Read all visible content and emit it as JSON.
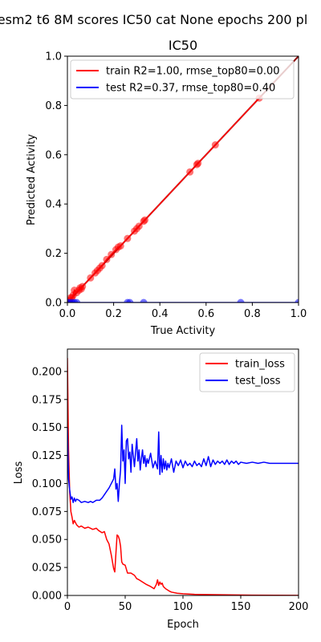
{
  "suptitle": "esm2 t6 8M scores IC50 cat None epochs 200 pl",
  "colors": {
    "train": "#ff0000",
    "test": "#0000ff",
    "diag": "#8b0000",
    "axis": "#000000"
  },
  "chart_data": [
    {
      "type": "scatter",
      "title": "IC50",
      "xlabel": "True Activity",
      "ylabel": "Predicted Activity",
      "xlim": [
        0,
        1
      ],
      "ylim": [
        0,
        1
      ],
      "xticks": [
        "0.0",
        "0.2",
        "0.4",
        "0.6",
        "0.8",
        "1.0"
      ],
      "yticks": [
        "0.0",
        "0.2",
        "0.4",
        "0.6",
        "0.8",
        "1.0"
      ],
      "legend_position": "upper-left",
      "diagonal": true,
      "series": [
        {
          "name": "train R2=1.00, rmse_top80=0.00",
          "color": "#ff0000",
          "points": [
            [
              0.0,
              0.0
            ],
            [
              0.005,
              0.005
            ],
            [
              0.01,
              0.01
            ],
            [
              0.015,
              0.02
            ],
            [
              0.02,
              0.02
            ],
            [
              0.025,
              0.03
            ],
            [
              0.03,
              0.05
            ],
            [
              0.04,
              0.04
            ],
            [
              0.05,
              0.05
            ],
            [
              0.055,
              0.06
            ],
            [
              0.06,
              0.055
            ],
            [
              0.065,
              0.065
            ],
            [
              0.1,
              0.1
            ],
            [
              0.12,
              0.12
            ],
            [
              0.13,
              0.13
            ],
            [
              0.14,
              0.14
            ],
            [
              0.15,
              0.15
            ],
            [
              0.17,
              0.175
            ],
            [
              0.19,
              0.195
            ],
            [
              0.21,
              0.215
            ],
            [
              0.22,
              0.225
            ],
            [
              0.23,
              0.23
            ],
            [
              0.26,
              0.26
            ],
            [
              0.29,
              0.29
            ],
            [
              0.3,
              0.3
            ],
            [
              0.31,
              0.31
            ],
            [
              0.33,
              0.33
            ],
            [
              0.335,
              0.335
            ],
            [
              0.53,
              0.53
            ],
            [
              0.56,
              0.56
            ],
            [
              0.565,
              0.565
            ],
            [
              0.64,
              0.64
            ],
            [
              0.83,
              0.83
            ]
          ]
        },
        {
          "name": "test R2=0.37, rmse_top80=0.40",
          "color": "#0000ff",
          "points": [
            [
              0.0,
              0.0
            ],
            [
              0.01,
              0.0
            ],
            [
              0.02,
              0.0
            ],
            [
              0.03,
              0.0
            ],
            [
              0.04,
              0.0
            ],
            [
              0.26,
              0.0
            ],
            [
              0.27,
              0.0
            ],
            [
              0.33,
              0.0
            ],
            [
              0.75,
              0.0
            ],
            [
              1.0,
              0.0
            ]
          ]
        }
      ]
    },
    {
      "type": "line",
      "title": "",
      "xlabel": "Epoch",
      "ylabel": "Loss",
      "xlim": [
        0,
        200
      ],
      "ylim": [
        0,
        0.22
      ],
      "xticks": [
        "0",
        "50",
        "100",
        "150",
        "200"
      ],
      "yticks": [
        "0.000",
        "0.025",
        "0.050",
        "0.075",
        "0.100",
        "0.125",
        "0.150",
        "0.175",
        "0.200"
      ],
      "legend_position": "upper-right",
      "series": [
        {
          "name": "train_loss",
          "color": "#ff0000",
          "points": [
            [
              0,
              0.212
            ],
            [
              1,
              0.13
            ],
            [
              2,
              0.092
            ],
            [
              3,
              0.075
            ],
            [
              4,
              0.07
            ],
            [
              5,
              0.064
            ],
            [
              6,
              0.067
            ],
            [
              8,
              0.063
            ],
            [
              10,
              0.061
            ],
            [
              12,
              0.062
            ],
            [
              15,
              0.06
            ],
            [
              18,
              0.061
            ],
            [
              20,
              0.06
            ],
            [
              22,
              0.059
            ],
            [
              25,
              0.06
            ],
            [
              27,
              0.058
            ],
            [
              30,
              0.056
            ],
            [
              32,
              0.057
            ],
            [
              34,
              0.05
            ],
            [
              36,
              0.046
            ],
            [
              38,
              0.036
            ],
            [
              40,
              0.024
            ],
            [
              41,
              0.021
            ],
            [
              42,
              0.038
            ],
            [
              43,
              0.054
            ],
            [
              44,
              0.053
            ],
            [
              45,
              0.05
            ],
            [
              46,
              0.044
            ],
            [
              47,
              0.03
            ],
            [
              48,
              0.028
            ],
            [
              50,
              0.027
            ],
            [
              52,
              0.02
            ],
            [
              55,
              0.02
            ],
            [
              58,
              0.018
            ],
            [
              60,
              0.015
            ],
            [
              62,
              0.014
            ],
            [
              65,
              0.012
            ],
            [
              68,
              0.01
            ],
            [
              70,
              0.009
            ],
            [
              72,
              0.008
            ],
            [
              75,
              0.006
            ],
            [
              77,
              0.01
            ],
            [
              78,
              0.014
            ],
            [
              79,
              0.009
            ],
            [
              80,
              0.012
            ],
            [
              81,
              0.01
            ],
            [
              82,
              0.011
            ],
            [
              83,
              0.008
            ],
            [
              85,
              0.006
            ],
            [
              88,
              0.004
            ],
            [
              90,
              0.003
            ],
            [
              95,
              0.002
            ],
            [
              100,
              0.0015
            ],
            [
              110,
              0.001
            ],
            [
              120,
              0.0008
            ],
            [
              140,
              0.0005
            ],
            [
              160,
              0.0003
            ],
            [
              180,
              0.0002
            ],
            [
              200,
              0.0001
            ]
          ]
        },
        {
          "name": "test_loss",
          "color": "#0000ff",
          "points": [
            [
              0,
              0.15
            ],
            [
              1,
              0.104
            ],
            [
              2,
              0.094
            ],
            [
              3,
              0.086
            ],
            [
              4,
              0.088
            ],
            [
              5,
              0.083
            ],
            [
              6,
              0.087
            ],
            [
              7,
              0.084
            ],
            [
              8,
              0.086
            ],
            [
              10,
              0.085
            ],
            [
              12,
              0.083
            ],
            [
              15,
              0.084
            ],
            [
              18,
              0.083
            ],
            [
              20,
              0.084
            ],
            [
              22,
              0.083
            ],
            [
              25,
              0.085
            ],
            [
              28,
              0.085
            ],
            [
              30,
              0.087
            ],
            [
              32,
              0.09
            ],
            [
              34,
              0.093
            ],
            [
              36,
              0.096
            ],
            [
              38,
              0.1
            ],
            [
              40,
              0.104
            ],
            [
              41,
              0.113
            ],
            [
              42,
              0.095
            ],
            [
              43,
              0.1
            ],
            [
              44,
              0.084
            ],
            [
              45,
              0.1
            ],
            [
              46,
              0.112
            ],
            [
              47,
              0.152
            ],
            [
              48,
              0.12
            ],
            [
              49,
              0.13
            ],
            [
              50,
              0.1
            ],
            [
              51,
              0.138
            ],
            [
              52,
              0.14
            ],
            [
              53,
              0.122
            ],
            [
              54,
              0.128
            ],
            [
              55,
              0.11
            ],
            [
              56,
              0.135
            ],
            [
              57,
              0.125
            ],
            [
              58,
              0.115
            ],
            [
              59,
              0.128
            ],
            [
              60,
              0.14
            ],
            [
              61,
              0.12
            ],
            [
              62,
              0.13
            ],
            [
              63,
              0.112
            ],
            [
              64,
              0.122
            ],
            [
              65,
              0.13
            ],
            [
              66,
              0.118
            ],
            [
              67,
              0.125
            ],
            [
              68,
              0.115
            ],
            [
              69,
              0.122
            ],
            [
              70,
              0.118
            ],
            [
              72,
              0.127
            ],
            [
              74,
              0.114
            ],
            [
              76,
              0.12
            ],
            [
              78,
              0.113
            ],
            [
              79,
              0.146
            ],
            [
              80,
              0.108
            ],
            [
              81,
              0.125
            ],
            [
              82,
              0.11
            ],
            [
              83,
              0.122
            ],
            [
              84,
              0.113
            ],
            [
              85,
              0.12
            ],
            [
              86,
              0.112
            ],
            [
              87,
              0.118
            ],
            [
              88,
              0.114
            ],
            [
              90,
              0.122
            ],
            [
              92,
              0.11
            ],
            [
              94,
              0.12
            ],
            [
              96,
              0.116
            ],
            [
              98,
              0.121
            ],
            [
              100,
              0.114
            ],
            [
              102,
              0.12
            ],
            [
              104,
              0.116
            ],
            [
              106,
              0.118
            ],
            [
              108,
              0.115
            ],
            [
              110,
              0.12
            ],
            [
              112,
              0.116
            ],
            [
              114,
              0.118
            ],
            [
              116,
              0.115
            ],
            [
              118,
              0.122
            ],
            [
              120,
              0.116
            ],
            [
              122,
              0.124
            ],
            [
              124,
              0.115
            ],
            [
              126,
              0.121
            ],
            [
              128,
              0.117
            ],
            [
              130,
              0.12
            ],
            [
              132,
              0.118
            ],
            [
              134,
              0.12
            ],
            [
              136,
              0.117
            ],
            [
              138,
              0.121
            ],
            [
              140,
              0.117
            ],
            [
              142,
              0.12
            ],
            [
              144,
              0.118
            ],
            [
              146,
              0.12
            ],
            [
              148,
              0.117
            ],
            [
              150,
              0.119
            ],
            [
              155,
              0.118
            ],
            [
              160,
              0.119
            ],
            [
              165,
              0.118
            ],
            [
              170,
              0.119
            ],
            [
              175,
              0.118
            ],
            [
              180,
              0.118
            ],
            [
              185,
              0.118
            ],
            [
              190,
              0.118
            ],
            [
              195,
              0.118
            ],
            [
              200,
              0.118
            ]
          ]
        }
      ]
    }
  ]
}
